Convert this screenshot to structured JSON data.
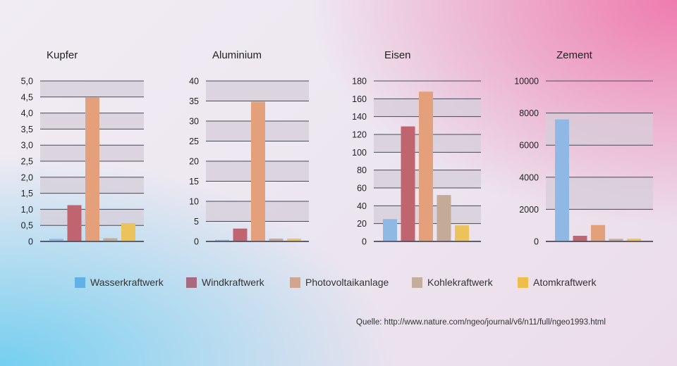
{
  "chart_data": [
    {
      "type": "bar",
      "title": "Kupfer",
      "categories": [
        "Wasserkraftwerk",
        "Windkraftwerk",
        "Photovoltaikanlage",
        "Kohlekraftwerk",
        "Atomkraftwerk"
      ],
      "values": [
        0.08,
        1.13,
        4.48,
        0.1,
        0.57
      ],
      "ylim": [
        0,
        5
      ],
      "yticks": [
        "0",
        "0,5",
        "1,0",
        "1,5",
        "2,0",
        "2,5",
        "3,0",
        "3,5",
        "4,0",
        "4,5",
        "5,0"
      ],
      "bands": [
        [
          0.5,
          1.0
        ],
        [
          1.5,
          2.0
        ],
        [
          2.5,
          3.0
        ],
        [
          3.5,
          4.0
        ],
        [
          4.5,
          5.0
        ]
      ]
    },
    {
      "type": "bar",
      "title": "Aluminium",
      "categories": [
        "Wasserkraftwerk",
        "Windkraftwerk",
        "Photovoltaikanlage",
        "Kohlekraftwerk",
        "Atomkraftwerk"
      ],
      "values": [
        0.4,
        3.2,
        34.8,
        0.7,
        0.7
      ],
      "ylim": [
        0,
        40
      ],
      "yticks": [
        "0",
        "5",
        "10",
        "15",
        "20",
        "25",
        "30",
        "35",
        "40"
      ],
      "bands": [
        [
          5,
          10
        ],
        [
          15,
          20
        ],
        [
          25,
          30
        ],
        [
          35,
          40
        ]
      ]
    },
    {
      "type": "bar",
      "title": "Eisen",
      "categories": [
        "Wasserkraftwerk",
        "Windkraftwerk",
        "Photovoltaikanlage",
        "Kohlekraftwerk",
        "Atomkraftwerk"
      ],
      "values": [
        25,
        129,
        168,
        52,
        18
      ],
      "ylim": [
        0,
        180
      ],
      "yticks": [
        "0",
        "20",
        "40",
        "60",
        "80",
        "100",
        "120",
        "140",
        "160",
        "180"
      ],
      "bands": [
        [
          20,
          40
        ],
        [
          60,
          80
        ],
        [
          100,
          120
        ],
        [
          140,
          160
        ]
      ]
    },
    {
      "type": "bar",
      "title": "Zement",
      "categories": [
        "Wasserkraftwerk",
        "Windkraftwerk",
        "Photovoltaikanlage",
        "Kohlekraftwerk",
        "Atomkraftwerk"
      ],
      "values": [
        7600,
        350,
        1020,
        160,
        170
      ],
      "ylim": [
        0,
        10000
      ],
      "yticks": [
        "0",
        "2000",
        "4000",
        "6000",
        "8000",
        "10000"
      ],
      "bands": [
        [
          2000,
          4000
        ],
        [
          6000,
          8000
        ]
      ]
    }
  ],
  "colors": {
    "bars": [
      "#8fb8e4",
      "#c0646f",
      "#e3a07a",
      "#c3ab98",
      "#ecc25a"
    ],
    "legend": [
      "#61b0e6",
      "#a86a80",
      "#d2a58d",
      "#c5ad9c",
      "#efbd4a"
    ],
    "band": "#d6cdd8",
    "grid": "#4a4a5a",
    "text": "#222222"
  },
  "legend": {
    "items": [
      "Wasserkraftwerk",
      "Windkraftwerk",
      "Photovoltaikanlage",
      "Kohlekraftwerk",
      "Atomkraftwerk"
    ]
  },
  "source": "Quelle: http://www.nature.com/ngeo/journal/v6/n11/full/ngeo1993.html"
}
